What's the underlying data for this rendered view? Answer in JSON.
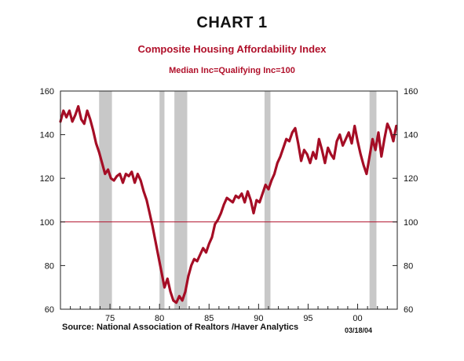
{
  "heading": "CHART 1",
  "chart_data": {
    "type": "line",
    "title": "Composite Housing Affordability Index",
    "subtitle": "Median Inc=Qualifying Inc=100",
    "source": "Source:  National Association of Realtors /Haver Analytics",
    "date_stamp": "03/18/04",
    "xlim": [
      1970.0,
      2004.0
    ],
    "ylim": [
      60,
      160
    ],
    "y_ticks": [
      60,
      80,
      100,
      120,
      140,
      160
    ],
    "x_ticks": [
      {
        "value": 1975,
        "label": "75"
      },
      {
        "value": 1980,
        "label": "80"
      },
      {
        "value": 1985,
        "label": "85"
      },
      {
        "value": 1990,
        "label": "90"
      },
      {
        "value": 1995,
        "label": "95"
      },
      {
        "value": 2000,
        "label": "00"
      }
    ],
    "reference_line": {
      "y": 100,
      "color": "#b0102a"
    },
    "recessions": [
      {
        "start": 1973.9,
        "end": 1975.2
      },
      {
        "start": 1980.0,
        "end": 1980.5
      },
      {
        "start": 1981.5,
        "end": 1982.8
      },
      {
        "start": 1990.6,
        "end": 1991.2
      },
      {
        "start": 2001.2,
        "end": 2001.9
      }
    ],
    "series": [
      {
        "color": "#a50d25",
        "x": [
          1970.0,
          1970.3,
          1970.6,
          1970.9,
          1971.2,
          1971.5,
          1971.8,
          1972.1,
          1972.4,
          1972.7,
          1973.0,
          1973.3,
          1973.6,
          1973.9,
          1974.2,
          1974.5,
          1974.8,
          1975.1,
          1975.4,
          1975.7,
          1976.0,
          1976.3,
          1976.6,
          1976.9,
          1977.2,
          1977.5,
          1977.8,
          1978.1,
          1978.4,
          1978.7,
          1979.0,
          1979.3,
          1979.6,
          1979.9,
          1980.2,
          1980.5,
          1980.8,
          1981.1,
          1981.4,
          1981.7,
          1982.0,
          1982.3,
          1982.6,
          1982.9,
          1983.2,
          1983.5,
          1983.8,
          1984.1,
          1984.4,
          1984.7,
          1985.0,
          1985.3,
          1985.6,
          1985.9,
          1986.2,
          1986.5,
          1986.8,
          1987.1,
          1987.4,
          1987.7,
          1988.0,
          1988.3,
          1988.6,
          1988.9,
          1989.2,
          1989.5,
          1989.8,
          1990.1,
          1990.4,
          1990.7,
          1991.0,
          1991.3,
          1991.6,
          1991.9,
          1992.2,
          1992.5,
          1992.8,
          1993.1,
          1993.4,
          1993.7,
          1994.0,
          1994.3,
          1994.6,
          1994.9,
          1995.2,
          1995.5,
          1995.8,
          1996.1,
          1996.4,
          1996.7,
          1997.0,
          1997.3,
          1997.6,
          1997.9,
          1998.2,
          1998.5,
          1998.8,
          1999.1,
          1999.4,
          1999.7,
          2000.0,
          2000.3,
          2000.6,
          2000.9,
          2001.2,
          2001.5,
          2001.8,
          2002.1,
          2002.4,
          2002.7,
          2003.0,
          2003.3,
          2003.6,
          2003.9
        ],
        "y": [
          146,
          151,
          148,
          151,
          146,
          149,
          153,
          147,
          145,
          151,
          147,
          142,
          136,
          132,
          127,
          122,
          124,
          120,
          119,
          121,
          122,
          118,
          122,
          121,
          123,
          118,
          122,
          119,
          114,
          110,
          104,
          98,
          91,
          84,
          77,
          70,
          74,
          68,
          64,
          63,
          66,
          64,
          68,
          75,
          80,
          83,
          82,
          85,
          88,
          86,
          90,
          93,
          99,
          101,
          104,
          108,
          111,
          110,
          109,
          112,
          111,
          113,
          109,
          114,
          110,
          104,
          110,
          109,
          113,
          117,
          115,
          119,
          122,
          127,
          130,
          134,
          138,
          137,
          141,
          143,
          136,
          128,
          133,
          131,
          127,
          132,
          129,
          138,
          133,
          127,
          134,
          131,
          129,
          137,
          140,
          135,
          138,
          141,
          136,
          144,
          137,
          131,
          126,
          122,
          130,
          138,
          133,
          141,
          130,
          138,
          145,
          142,
          137,
          144
        ]
      }
    ]
  }
}
